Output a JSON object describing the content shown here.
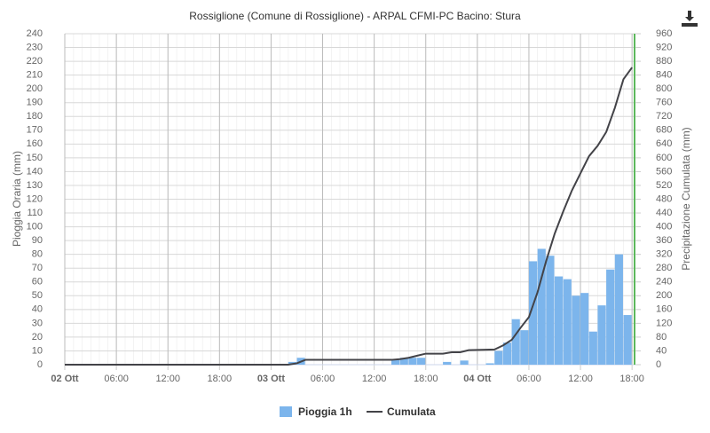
{
  "chart_data": {
    "type": "bar-line",
    "title": "Rossiglione (Comune di Rossiglione) - ARPAL CFMI-PC Bacino: Stura",
    "y_label": "Pioggia Oraria (mm)",
    "y2_label": "Precipitazione Cumulata (mm)",
    "xlim": [
      0,
      66.5
    ],
    "xticks": [
      {
        "value": 0,
        "label": "02 Ott"
      },
      {
        "value": 6,
        "label": "06:00"
      },
      {
        "value": 12,
        "label": "12:00"
      },
      {
        "value": 18,
        "label": "18:00"
      },
      {
        "value": 24,
        "label": "03 Ott"
      },
      {
        "value": 30,
        "label": "06:00"
      },
      {
        "value": 36,
        "label": "12:00"
      },
      {
        "value": 42,
        "label": "18:00"
      },
      {
        "value": 48,
        "label": "04 Ott"
      },
      {
        "value": 54,
        "label": "06:00"
      },
      {
        "value": 60,
        "label": "12:00"
      },
      {
        "value": 66,
        "label": "18:00"
      }
    ],
    "ylim": [
      0,
      240
    ],
    "yticks": [
      0,
      10,
      20,
      30,
      40,
      50,
      60,
      70,
      80,
      90,
      100,
      110,
      120,
      130,
      140,
      150,
      160,
      170,
      180,
      190,
      200,
      210,
      220,
      230,
      240
    ],
    "y2lim": [
      0,
      960
    ],
    "y2ticks": [
      0,
      40,
      80,
      120,
      160,
      200,
      240,
      280,
      320,
      360,
      400,
      440,
      480,
      520,
      560,
      600,
      640,
      680,
      720,
      760,
      800,
      840,
      880,
      920,
      960
    ],
    "grid": true,
    "legend": "bottom",
    "series": [
      {
        "name": "Pioggia 1h",
        "type": "bar",
        "color": "#7cb5ec",
        "x": [
          26,
          27,
          38,
          39,
          40,
          41,
          44,
          46,
          49,
          50,
          51,
          52,
          53,
          54,
          55,
          56,
          57,
          58,
          59,
          60,
          61,
          62,
          63,
          64,
          65
        ],
        "values": [
          2,
          5,
          4,
          5,
          5,
          5,
          2,
          3,
          1,
          10,
          16,
          33,
          25,
          75,
          84,
          79,
          64,
          62,
          50,
          52,
          24,
          43,
          69,
          80,
          36
        ]
      },
      {
        "name": "Cumulata",
        "type": "line",
        "color": "#434348",
        "axis": "y2",
        "x": [
          0,
          26,
          27,
          28,
          38,
          39,
          40,
          41,
          42,
          44,
          45,
          46,
          47,
          50,
          51,
          52,
          53,
          54,
          55,
          56,
          57,
          58,
          59,
          60,
          61,
          62,
          63,
          64,
          65,
          66
        ],
        "values": [
          0,
          0,
          4,
          14,
          14,
          16,
          20,
          26,
          32,
          32,
          36,
          36,
          42,
          44,
          56,
          72,
          106,
          138,
          210,
          300,
          380,
          445,
          505,
          555,
          605,
          635,
          675,
          745,
          828,
          862
        ]
      }
    ]
  }
}
